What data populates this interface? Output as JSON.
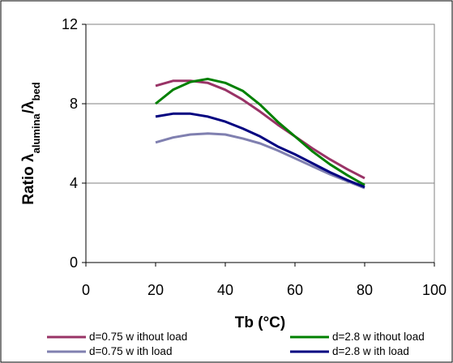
{
  "chart_data": {
    "type": "line",
    "title": "",
    "xlabel": "Tb (°C)",
    "ylabel": {
      "prefix": "Ratio λ",
      "sub1": "alumina",
      "mid": "/λ",
      "sub2": "bed"
    },
    "xlim": [
      0,
      100
    ],
    "ylim": [
      0,
      12
    ],
    "xticks": [
      0,
      20,
      40,
      60,
      80,
      100
    ],
    "yticks": [
      0,
      4,
      8,
      12
    ],
    "grid": "horizontal",
    "legend_position": "bottom",
    "series": [
      {
        "name": "d=0.75 w ithout load",
        "color": "#993366",
        "x": [
          20,
          25,
          30,
          35,
          40,
          45,
          50,
          55,
          60,
          65,
          70,
          75,
          80
        ],
        "y": [
          8.9,
          9.15,
          9.15,
          9.05,
          8.7,
          8.2,
          7.6,
          6.95,
          6.35,
          5.75,
          5.2,
          4.7,
          4.25
        ]
      },
      {
        "name": "d=2.8 w ithout load",
        "color": "#008000",
        "x": [
          20,
          25,
          30,
          35,
          40,
          45,
          50,
          55,
          60,
          65,
          70,
          75,
          80
        ],
        "y": [
          8.0,
          8.7,
          9.1,
          9.25,
          9.05,
          8.65,
          7.95,
          7.1,
          6.35,
          5.6,
          4.95,
          4.4,
          3.9
        ]
      },
      {
        "name": "d=0.75 w ith load",
        "color": "#8080b0",
        "x": [
          20,
          25,
          30,
          35,
          40,
          45,
          50,
          55,
          60,
          65,
          70,
          75,
          80
        ],
        "y": [
          6.05,
          6.3,
          6.45,
          6.5,
          6.45,
          6.25,
          6.0,
          5.65,
          5.25,
          4.85,
          4.45,
          4.1,
          3.75
        ]
      },
      {
        "name": "d=2.8 w ith load",
        "color": "#000080",
        "x": [
          20,
          25,
          30,
          35,
          40,
          45,
          50,
          55,
          60,
          65,
          70,
          75,
          80
        ],
        "y": [
          7.35,
          7.5,
          7.5,
          7.35,
          7.1,
          6.75,
          6.35,
          5.85,
          5.45,
          5.0,
          4.55,
          4.15,
          3.8
        ]
      }
    ]
  }
}
